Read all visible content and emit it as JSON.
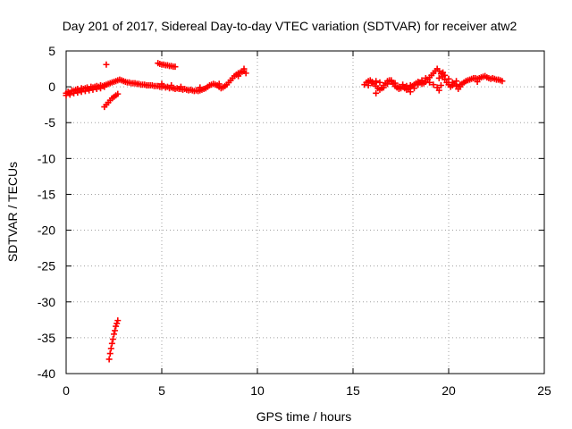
{
  "chart_data": {
    "type": "scatter",
    "title": "Day 201 of 2017, Sidereal Day-to-day VTEC variation (SDTVAR) for receiver atw2",
    "xlabel": "GPS time / hours",
    "ylabel": "SDTVAR / TECUs",
    "xlim": [
      0,
      25
    ],
    "ylim": [
      -40,
      5
    ],
    "xticks": [
      0,
      5,
      10,
      15,
      20,
      25
    ],
    "yticks": [
      5,
      0,
      -5,
      -10,
      -15,
      -20,
      -25,
      -30,
      -35,
      -40
    ],
    "grid": true,
    "marker": "+",
    "color": "#ff0000",
    "series": [
      {
        "name": "SDTVAR",
        "points": [
          [
            0.0,
            -0.9
          ],
          [
            0.1,
            -0.7
          ],
          [
            0.2,
            -0.9
          ],
          [
            0.3,
            -0.5
          ],
          [
            0.4,
            -0.6
          ],
          [
            0.5,
            -0.4
          ],
          [
            0.6,
            -0.3
          ],
          [
            0.7,
            -0.5
          ],
          [
            0.8,
            -0.2
          ],
          [
            0.9,
            -0.3
          ],
          [
            1.0,
            -0.2
          ],
          [
            1.1,
            -0.1
          ],
          [
            1.2,
            -0.3
          ],
          [
            1.3,
            0.0
          ],
          [
            1.4,
            -0.1
          ],
          [
            1.5,
            0.0
          ],
          [
            1.6,
            0.1
          ],
          [
            1.7,
            0.0
          ],
          [
            1.8,
            0.2
          ],
          [
            1.9,
            0.1
          ],
          [
            2.0,
            0.2
          ],
          [
            2.1,
            0.3
          ],
          [
            2.2,
            0.4
          ],
          [
            2.3,
            0.5
          ],
          [
            2.4,
            0.6
          ],
          [
            2.5,
            0.7
          ],
          [
            2.6,
            0.8
          ],
          [
            2.7,
            0.9
          ],
          [
            2.8,
            1.0
          ],
          [
            2.9,
            0.9
          ],
          [
            3.0,
            0.8
          ],
          [
            3.1,
            0.7
          ],
          [
            3.2,
            0.6
          ],
          [
            3.3,
            0.6
          ],
          [
            3.4,
            0.5
          ],
          [
            3.5,
            0.5
          ],
          [
            3.6,
            0.5
          ],
          [
            3.7,
            0.4
          ],
          [
            3.8,
            0.4
          ],
          [
            3.9,
            0.3
          ],
          [
            4.0,
            0.3
          ],
          [
            4.1,
            0.3
          ],
          [
            4.2,
            0.2
          ],
          [
            4.3,
            0.2
          ],
          [
            4.4,
            0.2
          ],
          [
            4.5,
            0.2
          ],
          [
            4.6,
            0.1
          ],
          [
            4.7,
            0.1
          ],
          [
            4.8,
            0.1
          ],
          [
            4.9,
            0.0
          ],
          [
            5.0,
            0.0
          ],
          [
            5.1,
            0.1
          ],
          [
            5.2,
            -0.1
          ],
          [
            5.3,
            0.0
          ],
          [
            5.4,
            -0.2
          ],
          [
            5.5,
            -0.1
          ],
          [
            5.6,
            -0.2
          ],
          [
            5.7,
            -0.3
          ],
          [
            5.8,
            -0.2
          ],
          [
            5.9,
            -0.3
          ],
          [
            6.0,
            -0.3
          ],
          [
            6.1,
            -0.4
          ],
          [
            6.2,
            -0.3
          ],
          [
            6.3,
            -0.4
          ],
          [
            6.4,
            -0.5
          ],
          [
            6.5,
            -0.4
          ],
          [
            6.6,
            -0.5
          ],
          [
            6.7,
            -0.6
          ],
          [
            6.8,
            -0.5
          ],
          [
            6.9,
            -0.6
          ],
          [
            7.0,
            -0.5
          ],
          [
            7.1,
            -0.4
          ],
          [
            7.2,
            -0.3
          ],
          [
            7.3,
            -0.2
          ],
          [
            7.4,
            0.0
          ],
          [
            7.5,
            0.2
          ],
          [
            7.6,
            0.3
          ],
          [
            7.7,
            0.4
          ],
          [
            7.8,
            0.3
          ],
          [
            7.9,
            0.2
          ],
          [
            8.0,
            0.0
          ],
          [
            8.1,
            -0.2
          ],
          [
            8.2,
            -0.1
          ],
          [
            8.3,
            0.1
          ],
          [
            8.4,
            0.3
          ],
          [
            8.5,
            0.6
          ],
          [
            8.6,
            0.9
          ],
          [
            8.7,
            1.2
          ],
          [
            8.8,
            1.5
          ],
          [
            8.9,
            1.7
          ],
          [
            9.0,
            1.9
          ],
          [
            9.1,
            2.0
          ],
          [
            9.2,
            2.1
          ],
          [
            9.3,
            2.2
          ],
          [
            9.4,
            1.9
          ],
          [
            0.0,
            -1.2
          ],
          [
            0.2,
            -1.1
          ],
          [
            0.4,
            -0.9
          ],
          [
            0.6,
            -0.8
          ],
          [
            0.8,
            -0.7
          ],
          [
            1.0,
            -0.6
          ],
          [
            1.2,
            -0.5
          ],
          [
            1.4,
            -0.4
          ],
          [
            1.6,
            -0.3
          ],
          [
            1.8,
            -0.2
          ],
          [
            2.0,
            0.0
          ],
          [
            5.0,
            0.4
          ],
          [
            5.5,
            0.2
          ],
          [
            6.0,
            0.0
          ],
          [
            7.0,
            -0.1
          ],
          [
            8.0,
            0.4
          ],
          [
            9.0,
            1.5
          ],
          [
            9.3,
            2.5
          ],
          [
            2.0,
            -2.8
          ],
          [
            2.1,
            -2.5
          ],
          [
            2.2,
            -2.2
          ],
          [
            2.3,
            -1.9
          ],
          [
            2.4,
            -1.6
          ],
          [
            2.5,
            -1.4
          ],
          [
            2.6,
            -1.2
          ],
          [
            2.7,
            -1.0
          ],
          [
            2.1,
            3.1
          ],
          [
            4.8,
            3.3
          ],
          [
            4.9,
            3.2
          ],
          [
            5.0,
            3.1
          ],
          [
            5.1,
            3.1
          ],
          [
            5.2,
            3.0
          ],
          [
            5.3,
            3.0
          ],
          [
            5.4,
            2.9
          ],
          [
            5.5,
            2.9
          ],
          [
            5.6,
            2.8
          ],
          [
            5.7,
            2.8
          ],
          [
            2.25,
            -38.0
          ],
          [
            2.3,
            -37.2
          ],
          [
            2.35,
            -36.5
          ],
          [
            2.4,
            -35.8
          ],
          [
            2.45,
            -35.2
          ],
          [
            2.5,
            -34.5
          ],
          [
            2.55,
            -34.0
          ],
          [
            2.6,
            -33.4
          ],
          [
            2.65,
            -33.0
          ],
          [
            2.7,
            -32.6
          ],
          [
            15.6,
            0.3
          ],
          [
            15.7,
            0.6
          ],
          [
            15.8,
            0.8
          ],
          [
            15.9,
            0.9
          ],
          [
            16.0,
            0.7
          ],
          [
            16.1,
            0.4
          ],
          [
            16.2,
            0.1
          ],
          [
            16.3,
            -0.2
          ],
          [
            16.4,
            -0.4
          ],
          [
            16.5,
            -0.2
          ],
          [
            16.6,
            0.2
          ],
          [
            16.7,
            0.5
          ],
          [
            16.8,
            0.8
          ],
          [
            16.9,
            0.9
          ],
          [
            17.0,
            0.7
          ],
          [
            17.1,
            0.4
          ],
          [
            17.2,
            0.1
          ],
          [
            17.3,
            -0.1
          ],
          [
            17.4,
            -0.3
          ],
          [
            17.5,
            -0.2
          ],
          [
            17.6,
            0.0
          ],
          [
            17.7,
            -0.2
          ],
          [
            17.8,
            -0.4
          ],
          [
            17.9,
            -0.3
          ],
          [
            18.0,
            -0.1
          ],
          [
            18.1,
            0.1
          ],
          [
            18.2,
            0.3
          ],
          [
            18.3,
            0.5
          ],
          [
            18.4,
            0.7
          ],
          [
            18.5,
            0.6
          ],
          [
            18.6,
            0.4
          ],
          [
            18.7,
            0.5
          ],
          [
            18.8,
            0.7
          ],
          [
            18.9,
            1.0
          ],
          [
            19.0,
            1.3
          ],
          [
            19.1,
            1.6
          ],
          [
            19.2,
            1.9
          ],
          [
            19.3,
            2.2
          ],
          [
            19.4,
            2.5
          ],
          [
            19.5,
            2.2
          ],
          [
            19.6,
            1.8
          ],
          [
            19.7,
            1.4
          ],
          [
            19.8,
            1.0
          ],
          [
            19.9,
            0.6
          ],
          [
            20.0,
            0.3
          ],
          [
            20.1,
            0.0
          ],
          [
            20.2,
            0.2
          ],
          [
            20.3,
            0.4
          ],
          [
            20.4,
            0.1
          ],
          [
            20.5,
            -0.3
          ],
          [
            20.6,
            0.0
          ],
          [
            20.7,
            0.4
          ],
          [
            20.8,
            0.6
          ],
          [
            20.9,
            0.8
          ],
          [
            21.0,
            0.9
          ],
          [
            21.1,
            1.0
          ],
          [
            21.2,
            1.1
          ],
          [
            21.3,
            1.2
          ],
          [
            21.4,
            1.2
          ],
          [
            21.5,
            1.1
          ],
          [
            21.6,
            1.2
          ],
          [
            21.7,
            1.3
          ],
          [
            21.8,
            1.4
          ],
          [
            21.9,
            1.5
          ],
          [
            22.0,
            1.3
          ],
          [
            22.1,
            1.2
          ],
          [
            22.2,
            1.1
          ],
          [
            22.3,
            1.2
          ],
          [
            22.4,
            1.1
          ],
          [
            22.5,
            1.0
          ],
          [
            22.6,
            1.0
          ],
          [
            22.7,
            0.9
          ],
          [
            22.8,
            0.8
          ],
          [
            15.8,
            0.2
          ],
          [
            16.0,
            0.5
          ],
          [
            16.2,
            0.8
          ],
          [
            16.4,
            0.6
          ],
          [
            16.6,
            -0.1
          ],
          [
            16.8,
            0.4
          ],
          [
            17.0,
            0.9
          ],
          [
            17.2,
            0.5
          ],
          [
            17.4,
            0.0
          ],
          [
            17.6,
            0.3
          ],
          [
            17.8,
            0.1
          ],
          [
            18.0,
            0.2
          ],
          [
            18.2,
            -0.2
          ],
          [
            18.4,
            0.3
          ],
          [
            18.6,
            0.9
          ],
          [
            18.8,
            1.2
          ],
          [
            19.0,
            0.6
          ],
          [
            19.2,
            0.3
          ],
          [
            19.4,
            -0.1
          ],
          [
            19.6,
            0.2
          ],
          [
            19.8,
            1.6
          ],
          [
            19.7,
            2.0
          ],
          [
            19.5,
            1.2
          ],
          [
            20.0,
            1.1
          ],
          [
            20.2,
            0.6
          ],
          [
            20.4,
            0.8
          ],
          [
            20.6,
            0.3
          ],
          [
            16.2,
            -0.9
          ],
          [
            18.0,
            -0.7
          ],
          [
            19.5,
            -0.5
          ],
          [
            21.5,
            0.7
          ]
        ]
      }
    ]
  }
}
